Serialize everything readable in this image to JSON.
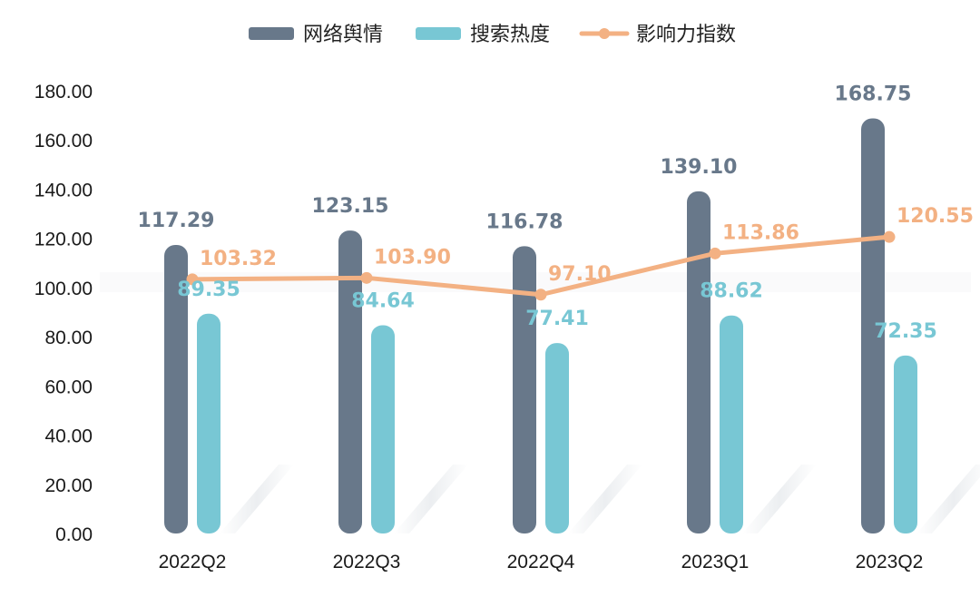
{
  "chart_data": {
    "type": "bar",
    "categories": [
      "2022Q2",
      "2022Q3",
      "2022Q4",
      "2023Q1",
      "2023Q2"
    ],
    "series": [
      {
        "name": "网络舆情",
        "kind": "bar",
        "color": "#68788a",
        "values": [
          117.29,
          123.15,
          116.78,
          139.1,
          168.75
        ],
        "labels": [
          "117.29",
          "123.15",
          "116.78",
          "139.10",
          "168.75"
        ]
      },
      {
        "name": "搜索热度",
        "kind": "bar",
        "color": "#78c7d4",
        "values": [
          89.35,
          84.64,
          77.41,
          88.62,
          72.35
        ],
        "labels": [
          "89.35",
          "84.64",
          "77.41",
          "88.62",
          "72.35"
        ]
      },
      {
        "name": "影响力指数",
        "kind": "line",
        "color": "#f3b183",
        "values": [
          103.32,
          103.9,
          97.1,
          113.86,
          120.55
        ],
        "labels": [
          "103.32",
          "103.90",
          "97.10",
          "113.86",
          "120.55"
        ]
      }
    ],
    "y_ticks": [
      "0.00",
      "20.00",
      "40.00",
      "60.00",
      "80.00",
      "100.00",
      "120.00",
      "140.00",
      "160.00",
      "180.00"
    ],
    "ylim": [
      0,
      180
    ],
    "legend_position": "top-center",
    "grid": false,
    "title": "",
    "xlabel": "",
    "ylabel": ""
  }
}
